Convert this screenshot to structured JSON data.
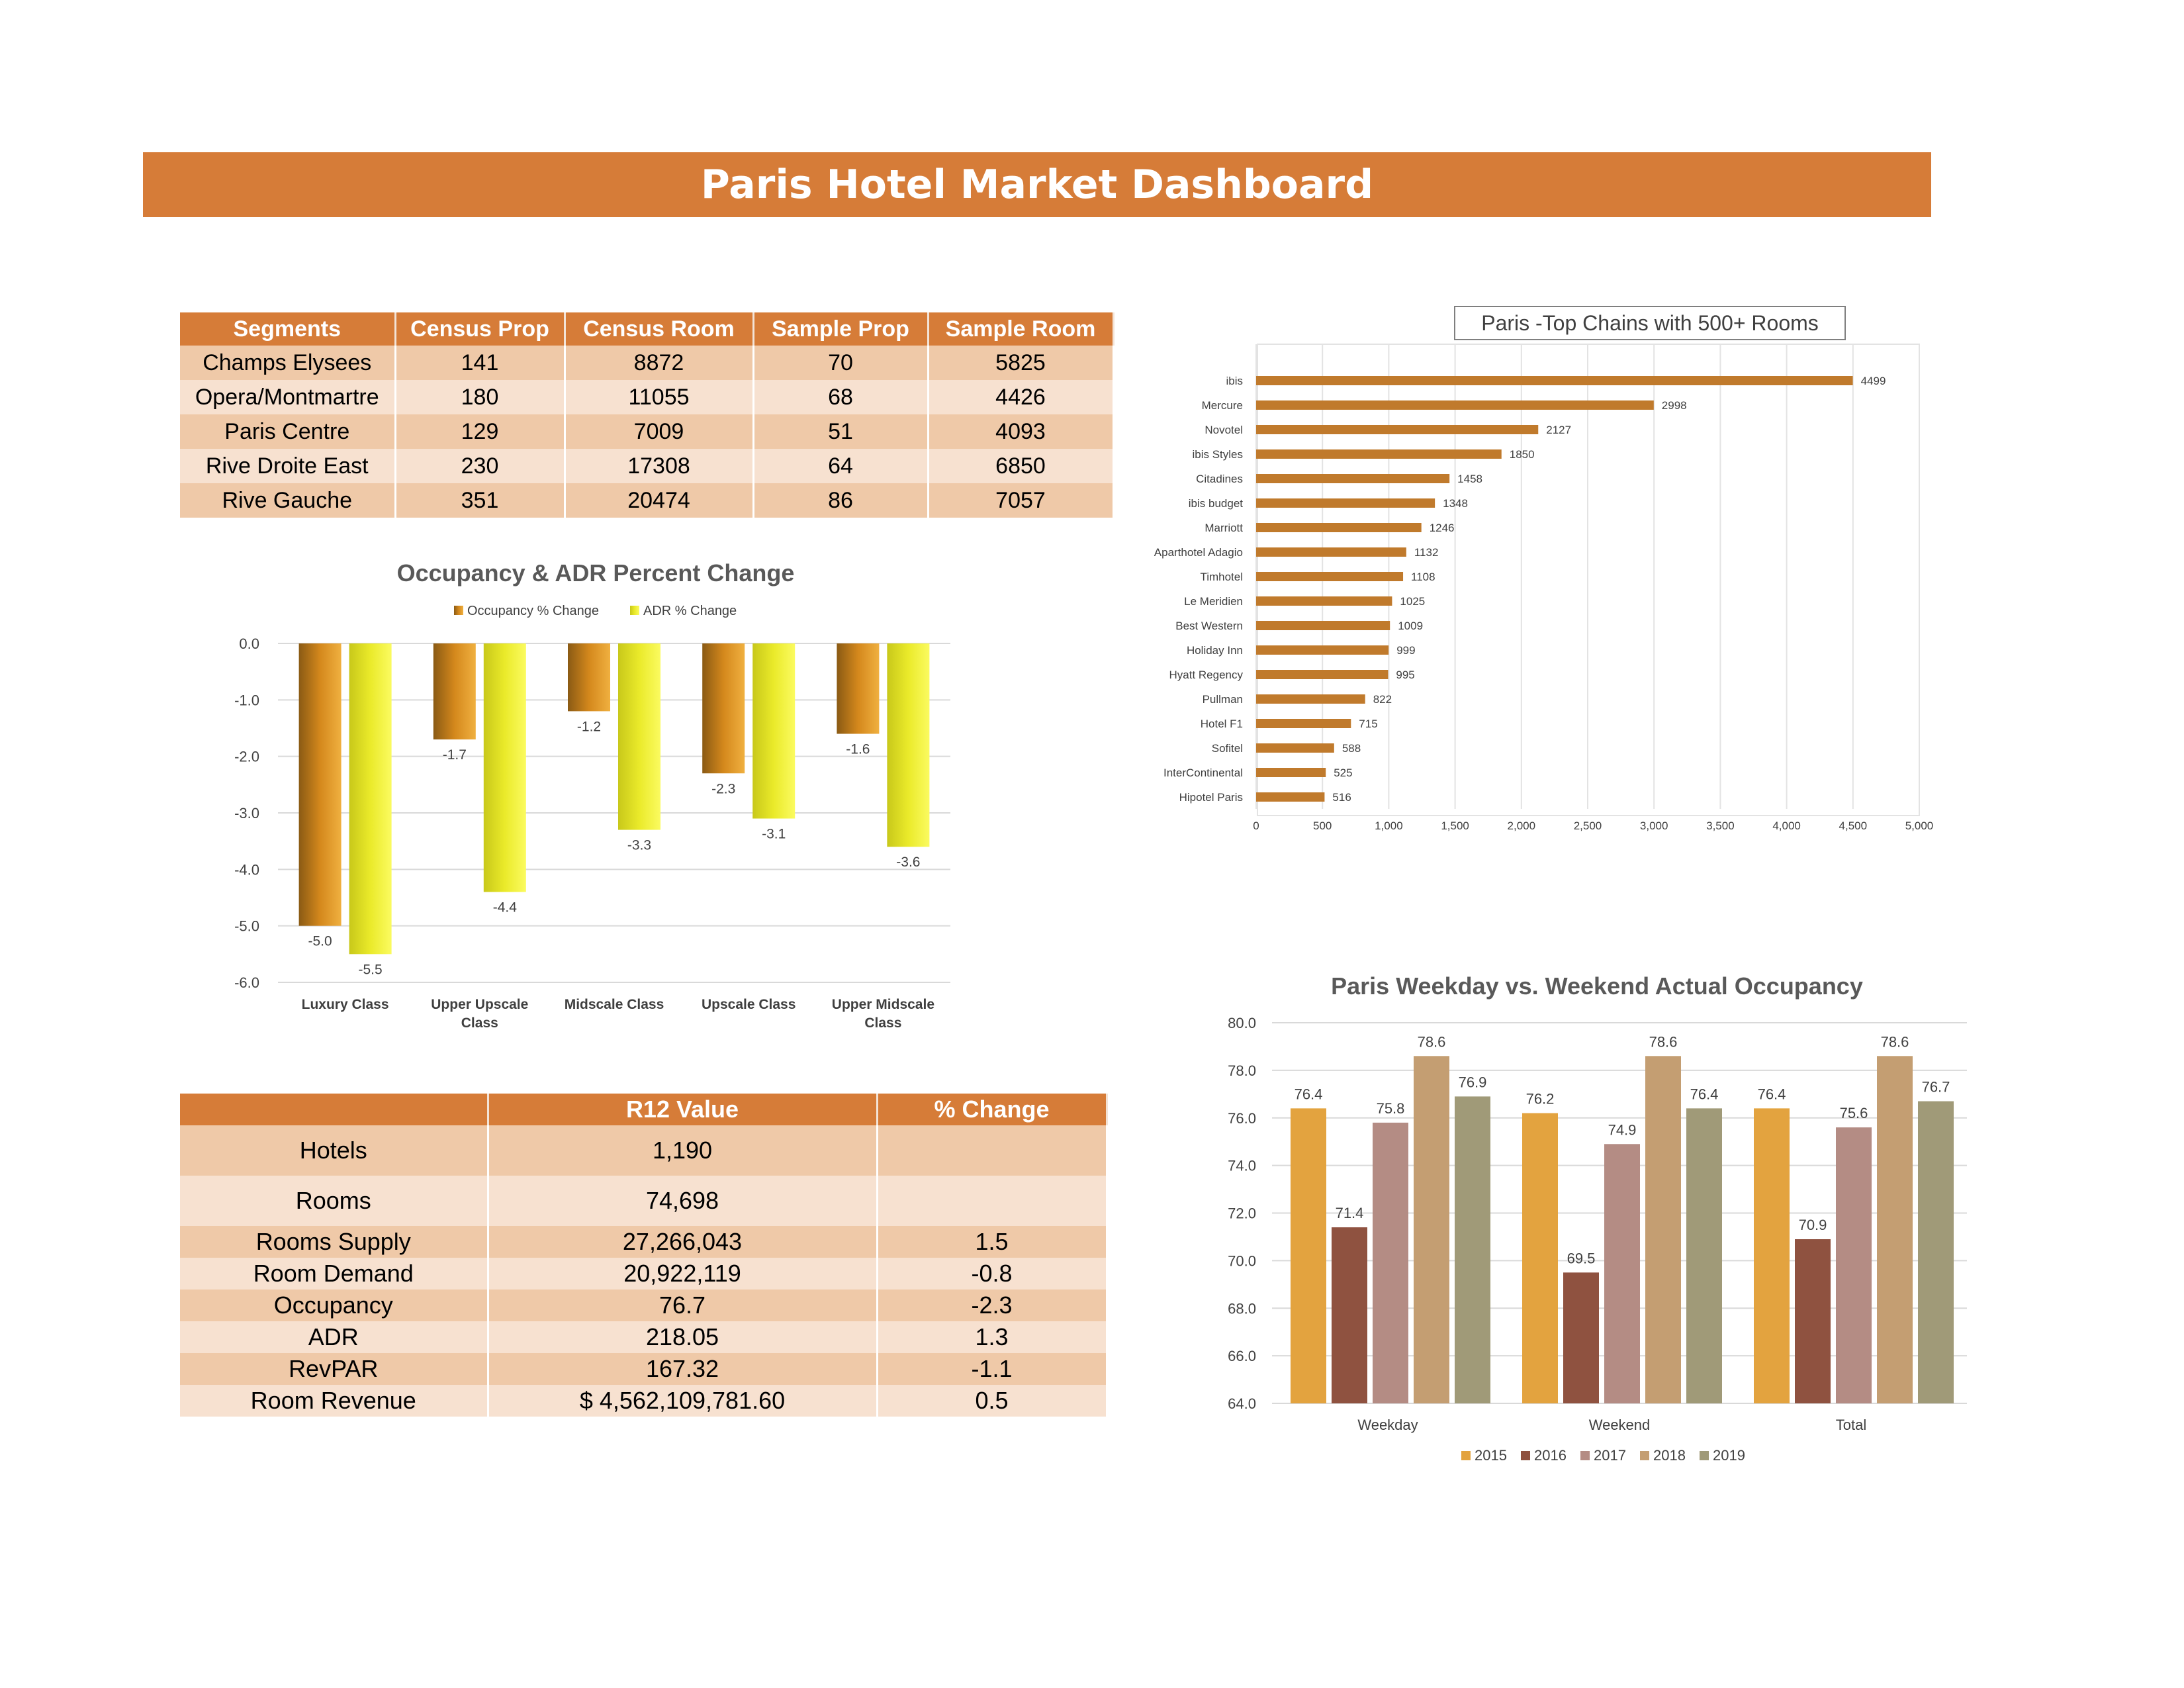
{
  "title": "Paris Hotel Market Dashboard",
  "segments_table": {
    "headers": [
      "Segments",
      "Census Prop",
      "Census Room",
      "Sample Prop",
      "Sample Room"
    ],
    "rows": [
      [
        "Champs Elysees",
        "141",
        "8872",
        "70",
        "5825"
      ],
      [
        "Opera/Montmartre",
        "180",
        "11055",
        "68",
        "4426"
      ],
      [
        "Paris Centre",
        "129",
        "7009",
        "51",
        "4093"
      ],
      [
        "Rive Droite East",
        "230",
        "17308",
        "64",
        "6850"
      ],
      [
        "Rive Gauche",
        "351",
        "20474",
        "86",
        "7057"
      ]
    ]
  },
  "kpi_table": {
    "headers": [
      "",
      "R12 Value",
      "% Change"
    ],
    "rows": [
      [
        "Hotels",
        "1,190",
        ""
      ],
      [
        "Rooms",
        "74,698",
        ""
      ],
      [
        "Rooms Supply",
        "27,266,043",
        "1.5"
      ],
      [
        "Room Demand",
        "20,922,119",
        "-0.8"
      ],
      [
        "Occupancy",
        "76.7",
        "-2.3"
      ],
      [
        "ADR",
        "218.05",
        "1.3"
      ],
      [
        "RevPAR",
        "167.32",
        "-1.1"
      ],
      [
        "Room Revenue",
        "$ 4,562,109,781.60",
        "0.5"
      ]
    ]
  },
  "colors": {
    "banner": "#d67c38",
    "occupancy_bar": "#d4881c",
    "adr_bar": "#eaea2a",
    "chain_bar": "#c07a2c",
    "y2015": "#e3a33f",
    "y2016": "#8f5240",
    "y2017": "#b48c84",
    "y2018": "#c49e72",
    "y2019": "#a09a78"
  },
  "chart_data": [
    {
      "id": "occ_adr",
      "type": "bar",
      "title": "Occupancy & ADR Percent Change",
      "categories": [
        "Luxury Class",
        "Upper Upscale Class",
        "Midscale Class",
        "Upscale Class",
        "Upper Midscale Class"
      ],
      "series": [
        {
          "name": "Occupancy % Change",
          "values": [
            -5.0,
            -1.7,
            -1.2,
            -2.3,
            -1.6
          ]
        },
        {
          "name": "ADR % Change",
          "values": [
            -5.5,
            -4.4,
            -3.3,
            -3.1,
            -3.6
          ]
        }
      ],
      "yticks": [
        "0.0",
        "-1.0",
        "-2.0",
        "-3.0",
        "-4.0",
        "-5.0",
        "-6.0"
      ],
      "ylim": [
        -6,
        0
      ],
      "legend": "top",
      "grid": true
    },
    {
      "id": "chains",
      "type": "bar",
      "orientation": "horizontal",
      "title": "Paris -Top Chains with 500+ Rooms",
      "categories": [
        "ibis",
        "Mercure",
        "Novotel",
        "ibis Styles",
        "Citadines",
        "ibis budget",
        "Marriott",
        "Aparthotel Adagio",
        "Timhotel",
        "Le Meridien",
        "Best Western",
        "Holiday Inn",
        "Hyatt Regency",
        "Pullman",
        "Hotel F1",
        "Sofitel",
        "InterContinental",
        "Hipotel Paris"
      ],
      "values": [
        4499,
        2998,
        2127,
        1850,
        1458,
        1348,
        1246,
        1132,
        1108,
        1025,
        1009,
        999,
        995,
        822,
        715,
        588,
        525,
        516
      ],
      "xticks": [
        "0",
        "500",
        "1,000",
        "1,500",
        "2,000",
        "2,500",
        "3,000",
        "3,500",
        "4,000",
        "4,500",
        "5,000"
      ],
      "xlim": [
        0,
        5000
      ],
      "grid": true
    },
    {
      "id": "weekday",
      "type": "bar",
      "title": "Paris Weekday vs. Weekend Actual Occupancy",
      "categories": [
        "Weekday",
        "Weekend",
        "Total"
      ],
      "series": [
        {
          "name": "2015",
          "values": [
            76.4,
            76.2,
            76.4
          ]
        },
        {
          "name": "2016",
          "values": [
            71.4,
            69.5,
            70.9
          ]
        },
        {
          "name": "2017",
          "values": [
            75.8,
            74.9,
            75.6
          ]
        },
        {
          "name": "2018",
          "values": [
            78.6,
            78.6,
            78.6
          ]
        },
        {
          "name": "2019",
          "values": [
            76.9,
            76.4,
            76.7
          ]
        }
      ],
      "yticks": [
        "80.0",
        "78.0",
        "76.0",
        "74.0",
        "72.0",
        "70.0",
        "68.0",
        "66.0",
        "64.0"
      ],
      "ylim": [
        64,
        80
      ],
      "legend": "bottom",
      "grid": true
    }
  ]
}
